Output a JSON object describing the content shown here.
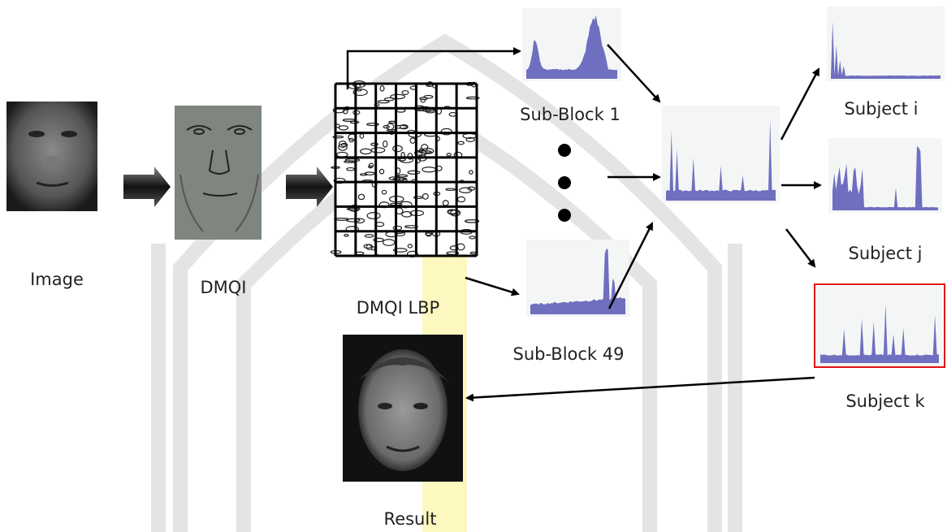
{
  "nodes": [
    {
      "label": "Image"
    },
    {
      "label": "DMQI"
    },
    {
      "label": "DMQI LBP"
    },
    {
      "label": "Sub-Block 1"
    },
    {
      "label": "Sub-Block 49"
    },
    {
      "label": "Subject i"
    },
    {
      "label": "Subject j"
    },
    {
      "label": "Subject k"
    },
    {
      "label": "Result"
    }
  ]
}
